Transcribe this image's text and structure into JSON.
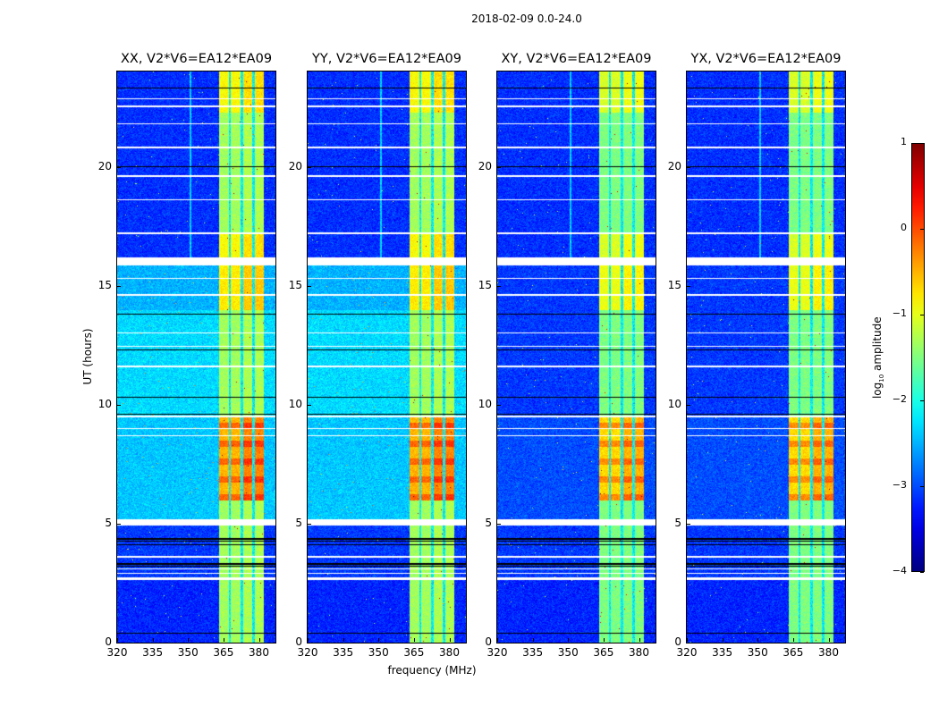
{
  "suptitle": "2018-02-09 0.0-24.0",
  "xlabel": "frequency (MHz)",
  "ylabel": "UT (hours)",
  "colorbar": {
    "label_main": "log",
    "label_sub": "10",
    "label_rest": " amplitude",
    "range": [
      -4,
      1
    ],
    "ticks": [
      "1",
      "0",
      "−1",
      "−2",
      "−3",
      "−4"
    ],
    "tick_values": [
      1,
      0,
      -1,
      -2,
      -3,
      -4
    ],
    "colormap": "jet"
  },
  "chart_data": [
    {
      "type": "heatmap",
      "title": "XX, V2*V6=EA12*EA09",
      "pol": "XX",
      "xlim": [
        320,
        387
      ],
      "ylim": [
        0,
        24
      ],
      "xticks": [
        "320",
        "335",
        "350",
        "365",
        "380"
      ],
      "xtick_values": [
        320,
        335,
        350,
        365,
        380
      ],
      "yticks": [
        "0",
        "5",
        "10",
        "15",
        "20"
      ],
      "ytick_values": [
        0,
        5,
        10,
        15,
        20
      ]
    },
    {
      "type": "heatmap",
      "title": "YY, V2*V6=EA12*EA09",
      "pol": "YY",
      "xlim": [
        320,
        387
      ],
      "ylim": [
        0,
        24
      ],
      "xticks": [
        "320",
        "335",
        "350",
        "365",
        "380"
      ],
      "xtick_values": [
        320,
        335,
        350,
        365,
        380
      ],
      "yticks": [
        "0",
        "5",
        "10",
        "15",
        "20"
      ],
      "ytick_values": [
        0,
        5,
        10,
        15,
        20
      ]
    },
    {
      "type": "heatmap",
      "title": "XY, V2*V6=EA12*EA09",
      "pol": "XY",
      "xlim": [
        320,
        387
      ],
      "ylim": [
        0,
        24
      ],
      "xticks": [
        "320",
        "335",
        "350",
        "365",
        "380"
      ],
      "xtick_values": [
        320,
        335,
        350,
        365,
        380
      ],
      "yticks": [
        "0",
        "5",
        "10",
        "15",
        "20"
      ],
      "ytick_values": [
        0,
        5,
        10,
        15,
        20
      ]
    },
    {
      "type": "heatmap",
      "title": "YX, V2*V6=EA12*EA09",
      "pol": "YX",
      "xlim": [
        320,
        387
      ],
      "ylim": [
        0,
        24
      ],
      "xticks": [
        "320",
        "335",
        "350",
        "365",
        "380"
      ],
      "xtick_values": [
        320,
        335,
        350,
        365,
        380
      ],
      "yticks": [
        "0",
        "5",
        "10",
        "15",
        "20"
      ],
      "ytick_values": [
        0,
        5,
        10,
        15,
        20
      ]
    }
  ],
  "heatmap_model": {
    "band_channels_mhz": [
      [
        363,
        367
      ],
      [
        368,
        372
      ],
      [
        373,
        377
      ],
      [
        378,
        382
      ]
    ],
    "flagged_hours": [
      [
        2.65,
        2.75
      ],
      [
        2.9,
        2.95
      ],
      [
        3.1,
        3.15
      ],
      [
        3.6,
        3.65
      ],
      [
        4.95,
        5.2
      ],
      [
        8.7,
        8.75
      ],
      [
        9.0,
        9.05
      ],
      [
        9.5,
        9.55
      ],
      [
        11.6,
        11.65
      ],
      [
        12.45,
        12.5
      ],
      [
        13.0,
        13.05
      ],
      [
        14.6,
        14.65
      ],
      [
        15.3,
        15.35
      ],
      [
        15.85,
        16.2
      ],
      [
        17.2,
        17.25
      ],
      [
        18.6,
        18.65
      ],
      [
        19.6,
        19.65
      ],
      [
        20.8,
        20.85
      ],
      [
        21.8,
        21.85
      ],
      [
        22.5,
        22.6
      ],
      [
        22.85,
        22.9
      ]
    ],
    "zero_hours": [
      [
        0.4,
        0.45
      ],
      [
        3.2,
        3.25
      ],
      [
        3.3,
        3.35
      ],
      [
        4.1,
        4.15
      ],
      [
        4.25,
        4.3
      ],
      [
        4.35,
        4.4
      ],
      [
        9.6,
        9.65
      ],
      [
        10.3,
        10.35
      ],
      [
        12.3,
        12.35
      ],
      [
        13.8,
        13.85
      ],
      [
        20.0,
        20.05
      ],
      [
        23.3,
        23.35
      ]
    ]
  }
}
